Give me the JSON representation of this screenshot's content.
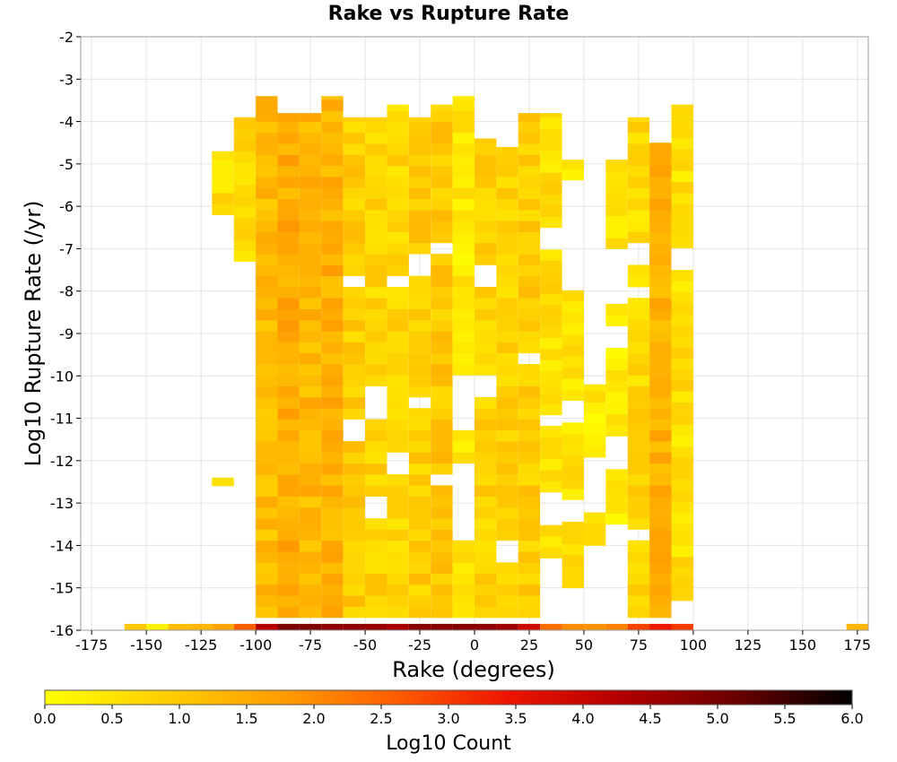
{
  "chart_data": {
    "type": "heatmap",
    "title": "Rake vs Rupture Rate",
    "xlabel": "Rake (degrees)",
    "ylabel": "Log10 Rupture Rate (/yr)",
    "xlim": [
      -180,
      180
    ],
    "ylim": [
      -16,
      -2
    ],
    "x_ticks": [
      -175,
      -150,
      -125,
      -100,
      -75,
      -50,
      -25,
      0,
      25,
      50,
      75,
      100,
      125,
      150,
      175
    ],
    "y_ticks": [
      -2,
      -3,
      -4,
      -5,
      -6,
      -7,
      -8,
      -9,
      -10,
      -11,
      -12,
      -13,
      -14,
      -15,
      -16
    ],
    "grid": true,
    "bin_width": 10,
    "colorbar": {
      "label": "Log10 Count",
      "min": 0.0,
      "max": 6.0,
      "ticks": [
        "0.0",
        "0.5",
        "1.0",
        "1.5",
        "2.0",
        "2.5",
        "3.0",
        "3.5",
        "4.0",
        "4.5",
        "5.0",
        "5.5",
        "6.0"
      ],
      "colors": [
        "#ffff00",
        "#ffd000",
        "#ffa000",
        "#ff6000",
        "#ee1500",
        "#b30000",
        "#6a0000",
        "#000000"
      ]
    },
    "bottom_row_counts": [
      {
        "x": -155,
        "v": 1.0
      },
      {
        "x": -145,
        "v": 0.3
      },
      {
        "x": -135,
        "v": 1.2
      },
      {
        "x": -125,
        "v": 1.3
      },
      {
        "x": -115,
        "v": 1.6
      },
      {
        "x": -105,
        "v": 2.6
      },
      {
        "x": -95,
        "v": 4.2
      },
      {
        "x": -85,
        "v": 4.9
      },
      {
        "x": -75,
        "v": 4.9
      },
      {
        "x": -65,
        "v": 4.7
      },
      {
        "x": -55,
        "v": 4.7
      },
      {
        "x": -45,
        "v": 4.6
      },
      {
        "x": -35,
        "v": 4.4
      },
      {
        "x": -25,
        "v": 4.8
      },
      {
        "x": -15,
        "v": 4.8
      },
      {
        "x": -5,
        "v": 4.8
      },
      {
        "x": 5,
        "v": 4.7
      },
      {
        "x": 15,
        "v": 4.5
      },
      {
        "x": 25,
        "v": 3.9
      },
      {
        "x": 35,
        "v": 2.4
      },
      {
        "x": 45,
        "v": 2.0
      },
      {
        "x": 55,
        "v": 1.9
      },
      {
        "x": 65,
        "v": 2.1
      },
      {
        "x": 75,
        "v": 2.9
      },
      {
        "x": 85,
        "v": 3.4
      },
      {
        "x": 95,
        "v": 3.0
      },
      {
        "x": 175,
        "v": 1.3
      }
    ],
    "columns": [
      {
        "x": -115,
        "v": 0.6,
        "ymin": -6.2,
        "ymax": -4.7,
        "gaps": [],
        "extra": [
          [
            -12.6,
            -12.4
          ]
        ]
      },
      {
        "x": -105,
        "v": 0.7,
        "ymin": -7.3,
        "ymax": -3.9,
        "gaps": [
          [
            -13.3,
            -12.7
          ]
        ],
        "extra": []
      },
      {
        "x": -95,
        "v": 1.2,
        "ymin": -15.7,
        "ymax": -3.4,
        "gaps": [],
        "extra": []
      },
      {
        "x": -85,
        "v": 1.5,
        "ymin": -15.7,
        "ymax": -3.8,
        "gaps": [],
        "extra": []
      },
      {
        "x": -75,
        "v": 1.3,
        "ymin": -15.7,
        "ymax": -3.8,
        "gaps": [],
        "extra": []
      },
      {
        "x": -65,
        "v": 1.4,
        "ymin": -15.7,
        "ymax": -3.4,
        "gaps": [],
        "extra": []
      },
      {
        "x": -55,
        "v": 0.9,
        "ymin": -15.7,
        "ymax": -3.9,
        "gaps": [
          [
            -8.0,
            -7.6
          ],
          [
            -11.6,
            -11.0
          ]
        ],
        "extra": []
      },
      {
        "x": -45,
        "v": 0.8,
        "ymin": -15.7,
        "ymax": -3.9,
        "gaps": [
          [
            -10.9,
            -10.2
          ],
          [
            -13.3,
            -12.8
          ]
        ],
        "extra": []
      },
      {
        "x": -35,
        "v": 0.7,
        "ymin": -15.7,
        "ymax": -3.6,
        "gaps": [
          [
            -8.0,
            -7.6
          ],
          [
            -12.2,
            -11.7
          ]
        ],
        "extra": []
      },
      {
        "x": -25,
        "v": 0.9,
        "ymin": -15.7,
        "ymax": -3.9,
        "gaps": [
          [
            -7.7,
            -7.0
          ],
          [
            -10.8,
            -10.4
          ]
        ],
        "extra": []
      },
      {
        "x": -15,
        "v": 1.0,
        "ymin": -15.7,
        "ymax": -3.6,
        "gaps": [
          [
            -7.2,
            -6.8
          ],
          [
            -12.6,
            -12.2
          ]
        ],
        "extra": []
      },
      {
        "x": -5,
        "v": 0.4,
        "ymin": -15.7,
        "ymax": -3.4,
        "gaps": [
          [
            -11.2,
            -9.9
          ],
          [
            -13.8,
            -12.0
          ]
        ],
        "extra": []
      },
      {
        "x": 5,
        "v": 0.8,
        "ymin": -15.7,
        "ymax": -4.4,
        "gaps": [
          [
            -8.0,
            -7.4
          ],
          [
            -10.4,
            -10.0
          ]
        ],
        "extra": []
      },
      {
        "x": 15,
        "v": 0.8,
        "ymin": -15.7,
        "ymax": -4.6,
        "gaps": [
          [
            -14.3,
            -14.0
          ]
        ],
        "extra": []
      },
      {
        "x": 25,
        "v": 0.9,
        "ymin": -15.7,
        "ymax": -3.8,
        "gaps": [
          [
            -9.8,
            -9.4
          ]
        ],
        "extra": []
      },
      {
        "x": 35,
        "v": 0.6,
        "ymin": -14.3,
        "ymax": -3.8,
        "gaps": [
          [
            -7.1,
            -6.6
          ],
          [
            -11.1,
            -10.8
          ],
          [
            -13.4,
            -12.8
          ]
        ],
        "extra": []
      },
      {
        "x": 45,
        "v": 0.5,
        "ymin": -15.0,
        "ymax": -4.9,
        "gaps": [
          [
            -6.4,
            -5.4
          ],
          [
            -8.0,
            -6.5
          ],
          [
            -11.0,
            -10.7
          ],
          [
            -13.4,
            -12.8
          ]
        ],
        "extra": []
      },
      {
        "x": 55,
        "v": 0.4,
        "ymin": -14.0,
        "ymax": -10.2,
        "gaps": [
          [
            -11.0,
            -10.8
          ],
          [
            -13.2,
            -12.0
          ]
        ],
        "extra": []
      },
      {
        "x": 65,
        "v": 0.4,
        "ymin": -13.5,
        "ymax": -4.9,
        "gaps": [
          [
            -8.3,
            -7.0
          ],
          [
            -9.4,
            -8.7
          ],
          [
            -12.1,
            -11.5
          ]
        ],
        "extra": []
      },
      {
        "x": 75,
        "v": 0.7,
        "ymin": -15.7,
        "ymax": -3.9,
        "gaps": [
          [
            -7.4,
            -6.9
          ],
          [
            -8.1,
            -8.0
          ],
          [
            -14.0,
            -13.7
          ]
        ],
        "extra": []
      },
      {
        "x": 85,
        "v": 1.4,
        "ymin": -15.7,
        "ymax": -4.5,
        "gaps": [],
        "extra": []
      },
      {
        "x": 95,
        "v": 0.6,
        "ymin": -15.3,
        "ymax": -3.6,
        "gaps": [
          [
            -7.5,
            -7.1
          ]
        ],
        "extra": []
      }
    ]
  }
}
